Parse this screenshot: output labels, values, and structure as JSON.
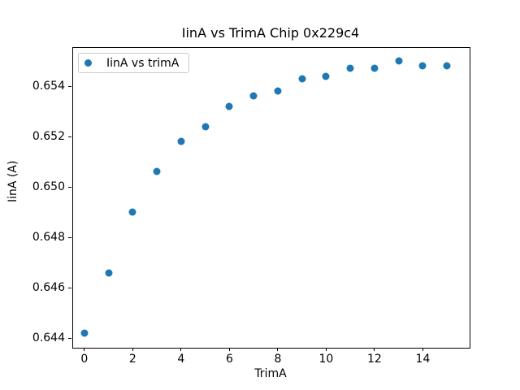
{
  "chart_data": {
    "type": "scatter",
    "title": "IinA vs TrimA Chip 0x229c4",
    "xlabel": "TrimA",
    "ylabel": "IinA (A)",
    "legend": {
      "label": "IinA vs trimA",
      "position": "upper left"
    },
    "marker_color": "#1f77b4",
    "grid": false,
    "x": [
      0,
      1,
      2,
      3,
      4,
      5,
      6,
      7,
      8,
      9,
      10,
      11,
      12,
      13,
      14,
      15
    ],
    "y": [
      0.6442,
      0.6466,
      0.649,
      0.6506,
      0.6518,
      0.6524,
      0.6532,
      0.6536,
      0.6538,
      0.6543,
      0.6544,
      0.6547,
      0.6547,
      0.655,
      0.6548,
      0.6548
    ],
    "xlim": [
      -0.5,
      15.9
    ],
    "ylim": [
      0.64365,
      0.65555
    ],
    "xticks": [
      0,
      2,
      4,
      6,
      8,
      10,
      12,
      14
    ],
    "yticks": [
      0.644,
      0.646,
      0.648,
      0.65,
      0.652,
      0.654
    ]
  }
}
